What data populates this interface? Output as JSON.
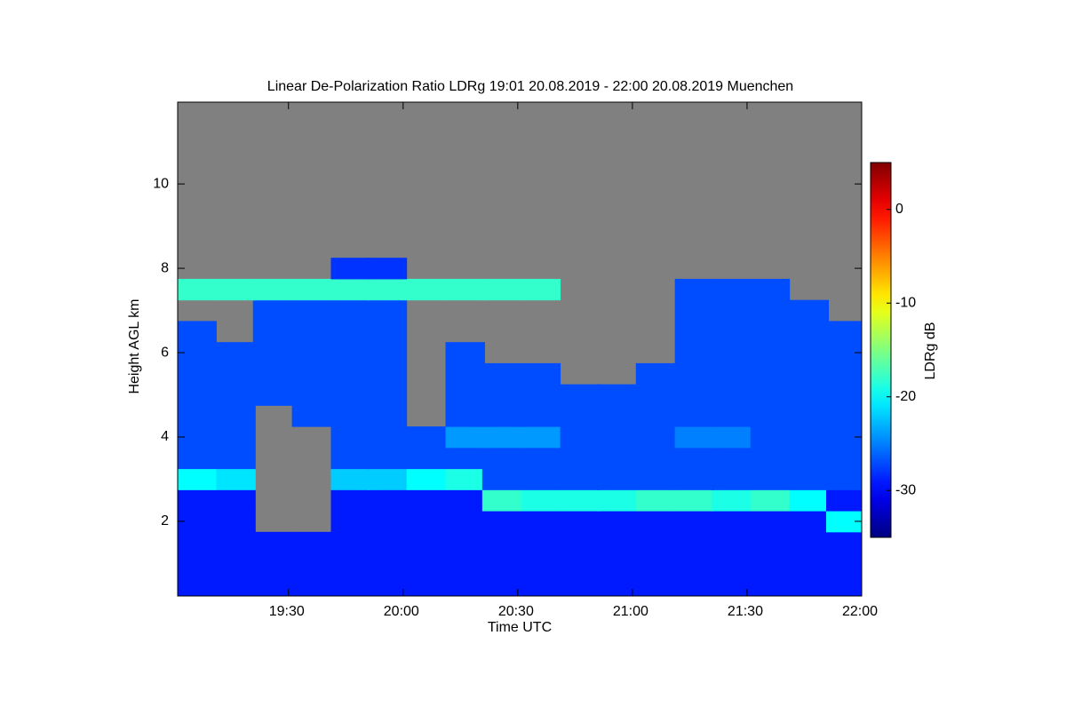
{
  "chart_data": {
    "type": "heatmap",
    "title": "Linear De-Polarization Ratio LDRg   19:01 20.08.2019 - 22:00 20.08.2019 Muenchen",
    "x_label": "Time UTC",
    "y_label": "Height AGL km",
    "colorbar_label": "LDRg dB",
    "colormap": "jet",
    "background": "#808080",
    "xlim": [
      19.0167,
      22.0
    ],
    "xticks": [
      {
        "value": 19.5,
        "label": "19:30"
      },
      {
        "value": 20.0,
        "label": "20:00"
      },
      {
        "value": 20.5,
        "label": "20:30"
      },
      {
        "value": 21.0,
        "label": "21:00"
      },
      {
        "value": 21.5,
        "label": "21:30"
      },
      {
        "value": 22.0,
        "label": "22:00"
      }
    ],
    "ylim": [
      0.23,
      11.94
    ],
    "yticks": [
      2,
      4,
      6,
      8,
      10
    ],
    "clim": [
      -35,
      5
    ],
    "cticks": [
      -30,
      -20,
      -10,
      0
    ],
    "x": [
      19.1,
      19.27,
      19.43,
      19.6,
      19.77,
      19.93,
      20.1,
      20.27,
      20.43,
      20.6,
      20.77,
      20.93,
      21.1,
      21.27,
      21.43,
      21.6,
      21.77,
      21.93
    ],
    "y": [
      0.5,
      1.0,
      1.5,
      2.0,
      2.5,
      3.0,
      3.5,
      4.0,
      4.5,
      5.0,
      5.5,
      6.0,
      6.5,
      7.0,
      7.5,
      8.0
    ],
    "z": [
      [
        -29,
        -29,
        -29,
        -29,
        -29,
        -29,
        -29,
        -29,
        -29,
        -29,
        -29,
        -29,
        -29,
        -29,
        -29,
        -29,
        -29,
        -29
      ],
      [
        -29,
        -29,
        -29,
        -29,
        -29,
        -29,
        -29,
        -29,
        -29,
        -29,
        -29,
        -29,
        -29,
        -29,
        -29,
        -29,
        -29,
        -29
      ],
      [
        -29,
        -29,
        -29,
        -29,
        -29,
        -29,
        -29,
        -29,
        -29,
        -29,
        -29,
        -29,
        -29,
        -29,
        -29,
        -29,
        -29,
        -29
      ],
      [
        -29,
        -29,
        null,
        null,
        -29,
        -29,
        -29,
        -29,
        -29,
        -29,
        -29,
        -29,
        -29,
        -29,
        -29,
        -29,
        -29,
        -20
      ],
      [
        -29,
        -29,
        null,
        null,
        -29,
        -29,
        -29,
        -29,
        -18,
        -19,
        -19,
        -19,
        -18,
        -18,
        -19,
        -18,
        -20,
        -29
      ],
      [
        -20,
        -21,
        null,
        null,
        -22,
        -22,
        -20,
        -19,
        -27,
        -27,
        -27,
        -27,
        -27,
        -27,
        -27,
        -27,
        -27,
        -27
      ],
      [
        -27,
        -27,
        null,
        null,
        -27,
        -27,
        -27,
        -27,
        -27,
        -27,
        -27,
        -27,
        -27,
        -27,
        -27,
        -27,
        -27,
        -27
      ],
      [
        -27,
        -27,
        null,
        null,
        -27,
        -27,
        -27,
        -24,
        -24,
        -24,
        -27,
        -27,
        -27,
        -25,
        -25,
        -27,
        -27,
        -27
      ],
      [
        -27,
        -27,
        null,
        -27,
        -27,
        -27,
        null,
        -27,
        -27,
        -27,
        -27,
        -27,
        -27,
        -27,
        -27,
        -27,
        -27,
        -27
      ],
      [
        -27,
        -27,
        -27,
        -27,
        -27,
        -27,
        null,
        -27,
        -27,
        -27,
        -27,
        -27,
        -27,
        -27,
        -27,
        -27,
        -27,
        -27
      ],
      [
        -27,
        -27,
        -27,
        -27,
        -27,
        -27,
        null,
        -27,
        -27,
        -27,
        null,
        null,
        -27,
        -27,
        -27,
        -27,
        -27,
        -27
      ],
      [
        -27,
        -27,
        -27,
        -27,
        -27,
        -27,
        null,
        -27,
        null,
        null,
        null,
        null,
        null,
        -27,
        -27,
        -27,
        -27,
        -27
      ],
      [
        -27,
        null,
        -27,
        -27,
        -27,
        -27,
        null,
        null,
        null,
        null,
        null,
        null,
        null,
        -27,
        -27,
        -27,
        -27,
        -27
      ],
      [
        null,
        null,
        -27,
        -27,
        -27,
        -27,
        null,
        null,
        null,
        null,
        null,
        null,
        null,
        -27,
        -27,
        -27,
        -27,
        null
      ],
      [
        -18,
        -18,
        -18,
        -18,
        -18,
        -18,
        -18,
        -18,
        -18,
        -18,
        null,
        null,
        null,
        -27,
        -27,
        -27,
        null,
        null
      ],
      [
        null,
        null,
        null,
        null,
        -28,
        -28,
        null,
        null,
        null,
        null,
        null,
        null,
        null,
        null,
        null,
        null,
        null,
        null
      ]
    ]
  }
}
